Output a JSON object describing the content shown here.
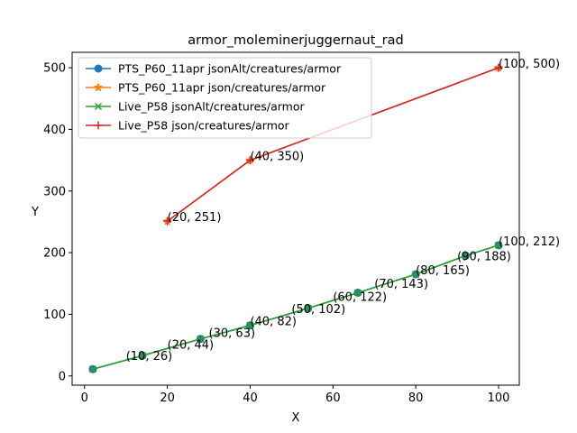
{
  "chart_data": {
    "type": "line",
    "title": "armor_moleminerjuggernaut_rad",
    "xlabel": "X",
    "ylabel": "Y",
    "xlim": [
      -3,
      105
    ],
    "ylim": [
      -15,
      525
    ],
    "xticks": [
      0,
      20,
      40,
      60,
      80,
      100
    ],
    "yticks": [
      0,
      100,
      200,
      300,
      400,
      500
    ],
    "grid": false,
    "legend_position": "top-left",
    "series": [
      {
        "name": "PTS_P60_11apr jsonAlt/creatures/armor",
        "color": "#1f77b4",
        "marker": "circle",
        "x": [
          2,
          14,
          28,
          40,
          54,
          66,
          80,
          92,
          100
        ],
        "y": [
          11,
          33,
          60,
          82,
          110,
          135,
          165,
          195,
          212
        ]
      },
      {
        "name": "PTS_P60_11apr json/creatures/armor",
        "color": "#ff7f0e",
        "marker": "star",
        "x": [
          20,
          40,
          100
        ],
        "y": [
          251,
          350,
          500
        ]
      },
      {
        "name": "Live_P58 jsonAlt/creatures/armor",
        "color": "#2ca02c",
        "marker": "x",
        "x": [
          2,
          14,
          28,
          40,
          54,
          66,
          80,
          92,
          100
        ],
        "y": [
          11,
          33,
          60,
          82,
          110,
          135,
          165,
          195,
          212
        ]
      },
      {
        "name": "Live_P58 json/creatures/armor",
        "color": "#d62728",
        "marker": "plus",
        "x": [
          20,
          40,
          100
        ],
        "y": [
          251,
          350,
          500
        ]
      }
    ],
    "annotations": [
      {
        "text": "(10, 26)",
        "x": 10,
        "y": 26
      },
      {
        "text": "(20, 44)",
        "x": 20,
        "y": 44
      },
      {
        "text": "(30, 63)",
        "x": 30,
        "y": 63
      },
      {
        "text": "(40, 82)",
        "x": 40,
        "y": 82
      },
      {
        "text": "(50, 102)",
        "x": 50,
        "y": 102
      },
      {
        "text": "(60, 122)",
        "x": 60,
        "y": 122
      },
      {
        "text": "(70, 143)",
        "x": 70,
        "y": 143
      },
      {
        "text": "(80, 165)",
        "x": 80,
        "y": 165
      },
      {
        "text": "(90, 188)",
        "x": 90,
        "y": 188
      },
      {
        "text": "(100, 212)",
        "x": 100,
        "y": 212
      },
      {
        "text": "(20, 251)",
        "x": 20,
        "y": 251
      },
      {
        "text": "(40, 350)",
        "x": 40,
        "y": 350
      },
      {
        "text": "(100, 500)",
        "x": 100,
        "y": 500
      }
    ]
  }
}
